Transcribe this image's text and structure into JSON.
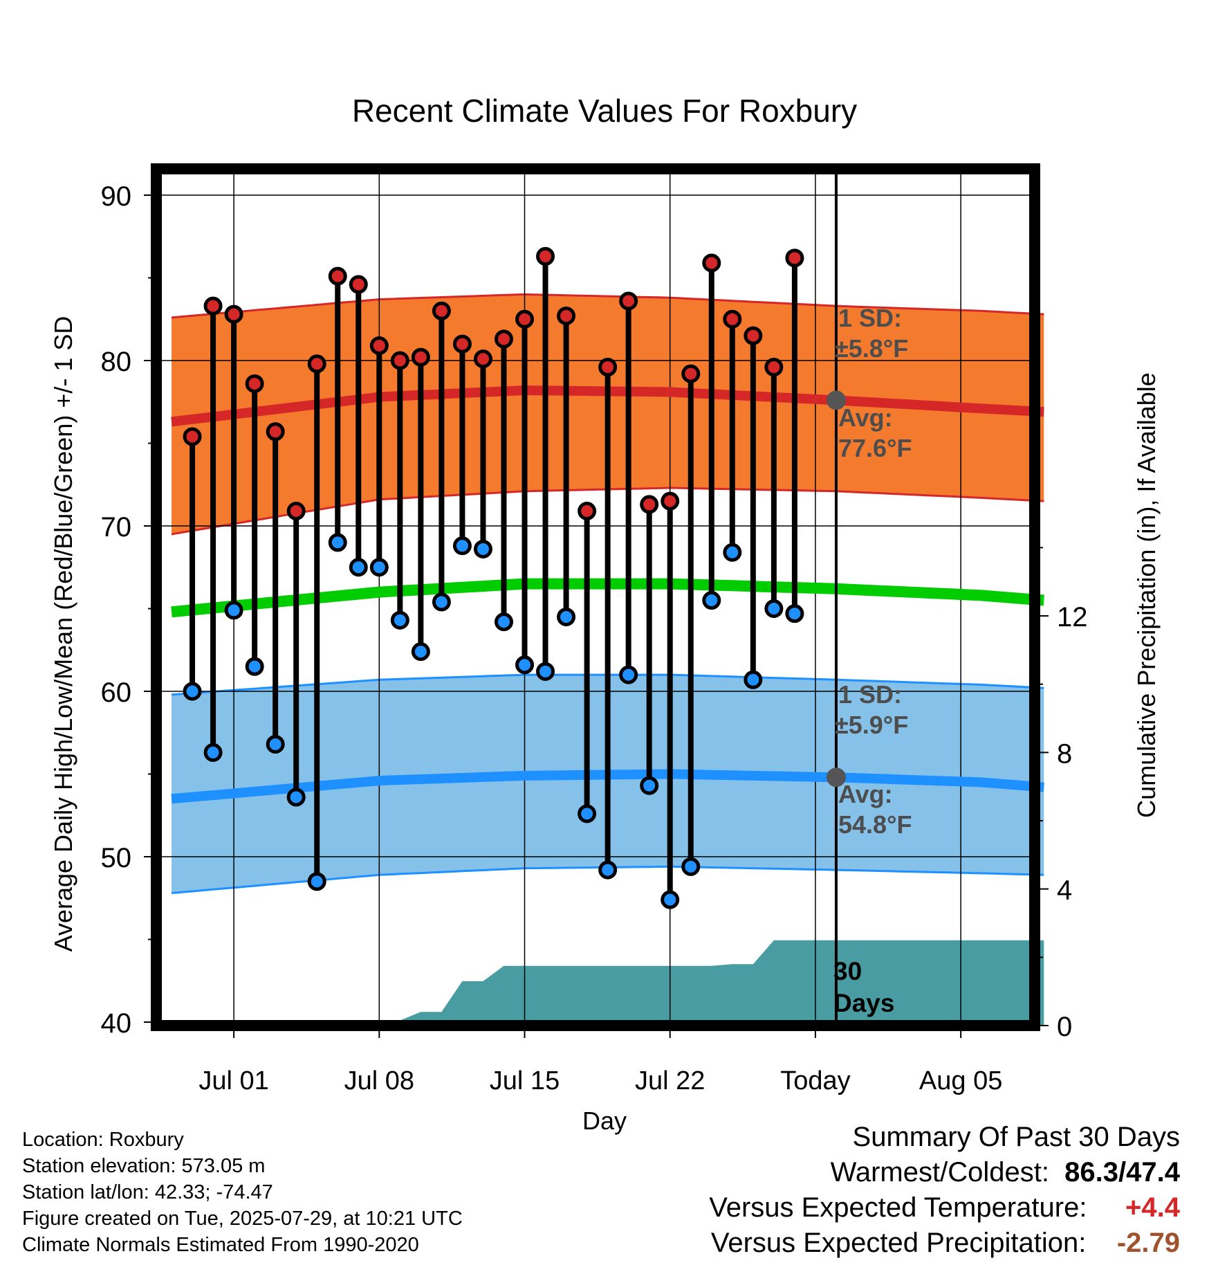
{
  "title": "Recent Climate Values For Roxbury",
  "chart_data": {
    "type": "line",
    "title": "Recent Climate Values For Roxbury",
    "xlabel": "Day",
    "ylabel": "Average Daily High/Low/Mean (Red/Blue/Green) +/- 1 SD",
    "y2label": "Cumulative Precipitation (in), If Available",
    "ylim": [
      40,
      90
    ],
    "y2lim": [
      0,
      24
    ],
    "yticks": [
      "90",
      "80",
      "70",
      "60",
      "50",
      "40"
    ],
    "y2ticks": [
      "12",
      "8",
      "4",
      "0"
    ],
    "xticks": [
      "Jul 01",
      "Jul 08",
      "Jul 15",
      "Jul 22",
      "Today",
      "Aug 05"
    ],
    "x_range_days": [
      -3,
      39
    ],
    "today_index": 29,
    "grid": true,
    "normals": {
      "x": [
        -3,
        7,
        14,
        21,
        29,
        36,
        39
      ],
      "high_mean": [
        76.3,
        77.8,
        78.2,
        78.1,
        77.6,
        77.1,
        76.9
      ],
      "high_upper": [
        82.6,
        83.7,
        84.0,
        83.8,
        83.3,
        83.0,
        82.8
      ],
      "high_lower": [
        69.5,
        71.6,
        72.1,
        72.3,
        72.1,
        71.7,
        71.5
      ],
      "mean": [
        64.8,
        66.0,
        66.5,
        66.5,
        66.2,
        65.8,
        65.5
      ],
      "low_mean": [
        53.5,
        54.6,
        54.9,
        55.0,
        54.8,
        54.5,
        54.2
      ],
      "low_upper": [
        59.8,
        60.7,
        61.0,
        61.0,
        60.7,
        60.4,
        60.2
      ],
      "low_lower": [
        47.8,
        48.9,
        49.3,
        49.4,
        49.2,
        49.0,
        48.9
      ]
    },
    "series": [
      {
        "name": "High",
        "x": [
          -2,
          -1,
          0,
          1,
          2,
          3,
          4,
          5,
          6,
          7,
          8,
          9,
          10,
          11,
          12,
          13,
          14,
          15,
          16,
          17,
          18,
          19,
          20,
          21,
          22,
          23,
          24,
          25,
          26,
          27
        ],
        "values": [
          75.4,
          83.3,
          82.8,
          78.6,
          75.7,
          70.9,
          79.8,
          85.1,
          84.6,
          80.9,
          80.0,
          80.2,
          83.0,
          81.0,
          80.1,
          81.3,
          82.5,
          86.3,
          82.7,
          70.9,
          79.6,
          83.6,
          71.3,
          71.5,
          79.2,
          85.9,
          82.5,
          81.5,
          79.6,
          86.2
        ]
      },
      {
        "name": "Low",
        "x": [
          -2,
          -1,
          0,
          1,
          2,
          3,
          4,
          5,
          6,
          7,
          8,
          9,
          10,
          11,
          12,
          13,
          14,
          15,
          16,
          17,
          18,
          19,
          20,
          21,
          22,
          23,
          24,
          25,
          26,
          27
        ],
        "values": [
          60.0,
          56.3,
          64.9,
          61.5,
          56.8,
          53.6,
          48.5,
          69.0,
          67.5,
          67.5,
          64.3,
          62.4,
          65.4,
          68.8,
          68.6,
          64.2,
          61.6,
          61.2,
          64.5,
          52.6,
          49.2,
          61.0,
          54.3,
          47.4,
          49.4,
          65.5,
          68.4,
          60.7,
          65.0,
          64.7
        ]
      }
    ],
    "precip_cumulative": {
      "x": [
        -3,
        4,
        7,
        8,
        9,
        10,
        11,
        12,
        13,
        14,
        15,
        20,
        23,
        24,
        25,
        26,
        39
      ],
      "values": [
        0,
        0,
        0,
        0.15,
        0.4,
        0.4,
        1.3,
        1.3,
        1.75,
        1.75,
        1.75,
        1.75,
        1.75,
        1.8,
        1.8,
        2.5,
        2.5
      ]
    },
    "annotations": {
      "high_sd_line1": "1 SD:",
      "high_sd_line2": "±5.8°F",
      "high_avg_line1": "Avg:",
      "high_avg_line2": "77.6°F",
      "low_sd_line1": "1 SD:",
      "low_sd_line2": "±5.9°F",
      "low_avg_line1": "Avg:",
      "low_avg_line2": "54.8°F",
      "window_line1": "30",
      "window_line2": "Days"
    },
    "colors": {
      "high_band": "#f47b2e",
      "high_line": "#d62728",
      "low_band": "#85c1e9",
      "low_line": "#1e90ff",
      "mean_line": "#00cc00",
      "precip": "#4a9ca3",
      "high_marker": "#d62728",
      "low_marker": "#1e90ff",
      "today_marker": "#555555"
    }
  },
  "footer": {
    "location": "Location: Roxbury",
    "elevation": "Station elevation: 573.05 m",
    "latlon": "Station lat/lon: 42.33; -74.47",
    "created": "Figure created on Tue, 2025-07-29, at 10:21 UTC",
    "normals": "Climate Normals Estimated From 1990-2020"
  },
  "summary": {
    "heading": "Summary Of Past 30 Days",
    "warm_cold_label": "Warmest/Coldest:",
    "warm_cold_value": "86.3/47.4",
    "temp_label": "Versus Expected Temperature:",
    "temp_value": "+4.4",
    "precip_label": "Versus Expected Precipitation:",
    "precip_value": "-2.79"
  }
}
